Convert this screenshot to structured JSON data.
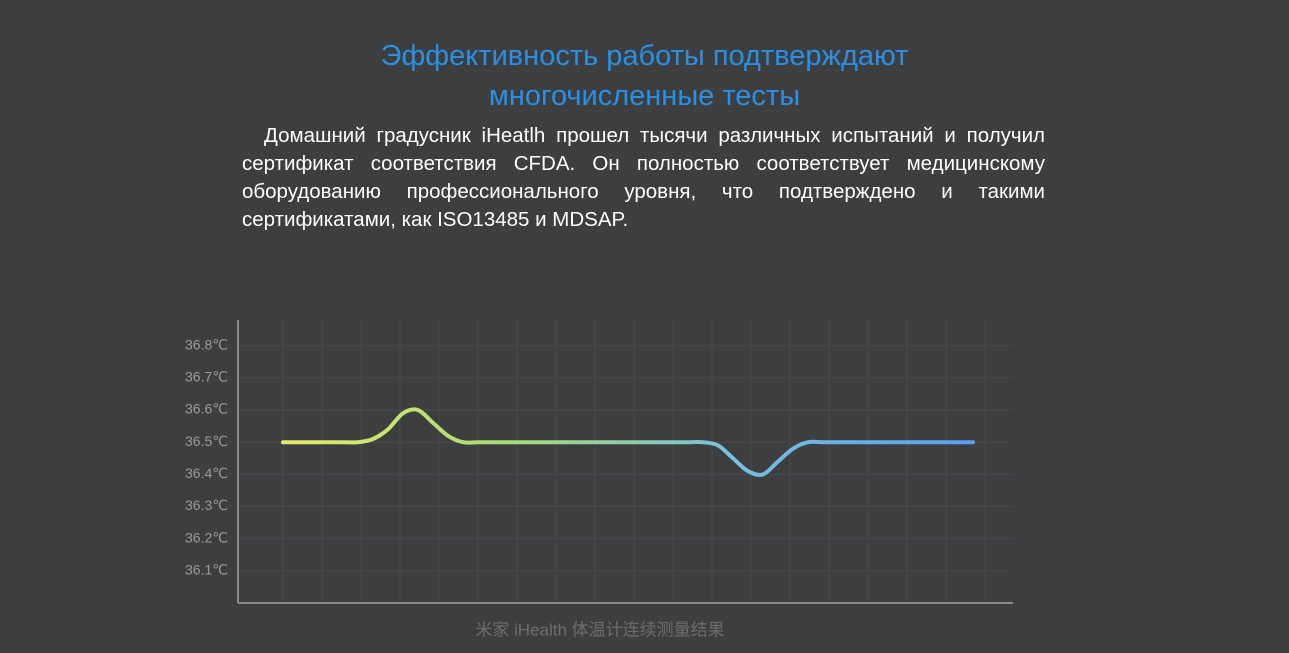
{
  "header": {
    "title_lines": [
      "Эффективность работы подтверждают",
      "многочисленные тесты"
    ],
    "paragraph": "Домашний градусник iHeatlh прошел тысячи различных испытаний и получил сертификат соответствия CFDA. Он полностью соответствует медицинскому оборудованию профессионального уровня, что подтверждено и такими сертификатами, как ISO13485 и MDSAP."
  },
  "chart_data": {
    "type": "line",
    "caption": "米家 iHealth 体温计连续测量结果",
    "categories": [
      null,
      null,
      null,
      null,
      null,
      null,
      null,
      null,
      null,
      null,
      null,
      null,
      null,
      null,
      null,
      null,
      null,
      null,
      null,
      null,
      null,
      null,
      null,
      null,
      null,
      null,
      null,
      null,
      null,
      null,
      null,
      null,
      null,
      null,
      null,
      null,
      null,
      null,
      null,
      null,
      null,
      null,
      null,
      null,
      null,
      null,
      null
    ],
    "values": [
      36.5,
      36.5,
      36.5,
      36.5,
      36.5,
      36.5,
      36.51,
      36.54,
      36.59,
      36.6,
      36.56,
      36.52,
      36.5,
      36.5,
      36.5,
      36.5,
      36.5,
      36.5,
      36.5,
      36.5,
      36.5,
      36.5,
      36.5,
      36.5,
      36.5,
      36.5,
      36.5,
      36.5,
      36.5,
      36.49,
      36.45,
      36.41,
      36.4,
      36.44,
      36.48,
      36.5,
      36.5,
      36.5,
      36.5,
      36.5,
      36.5,
      36.5,
      36.5,
      36.5,
      36.5,
      36.5,
      36.5
    ],
    "gradient": [
      "#e4ea6a",
      "#a6dc78",
      "#76bfe0",
      "#5a9ff0"
    ],
    "ylim": [
      36.0,
      36.88
    ],
    "yticks": [
      {
        "value": 36.1,
        "label": "36.1℃"
      },
      {
        "value": 36.2,
        "label": "36.2℃"
      },
      {
        "value": 36.3,
        "label": "36.3℃"
      },
      {
        "value": 36.4,
        "label": "36.4℃"
      },
      {
        "value": 36.5,
        "label": "36.5℃"
      },
      {
        "value": 36.6,
        "label": "36.6℃"
      },
      {
        "value": 36.7,
        "label": "36.7℃"
      },
      {
        "value": 36.8,
        "label": "36.8℃"
      }
    ],
    "grid": true
  }
}
